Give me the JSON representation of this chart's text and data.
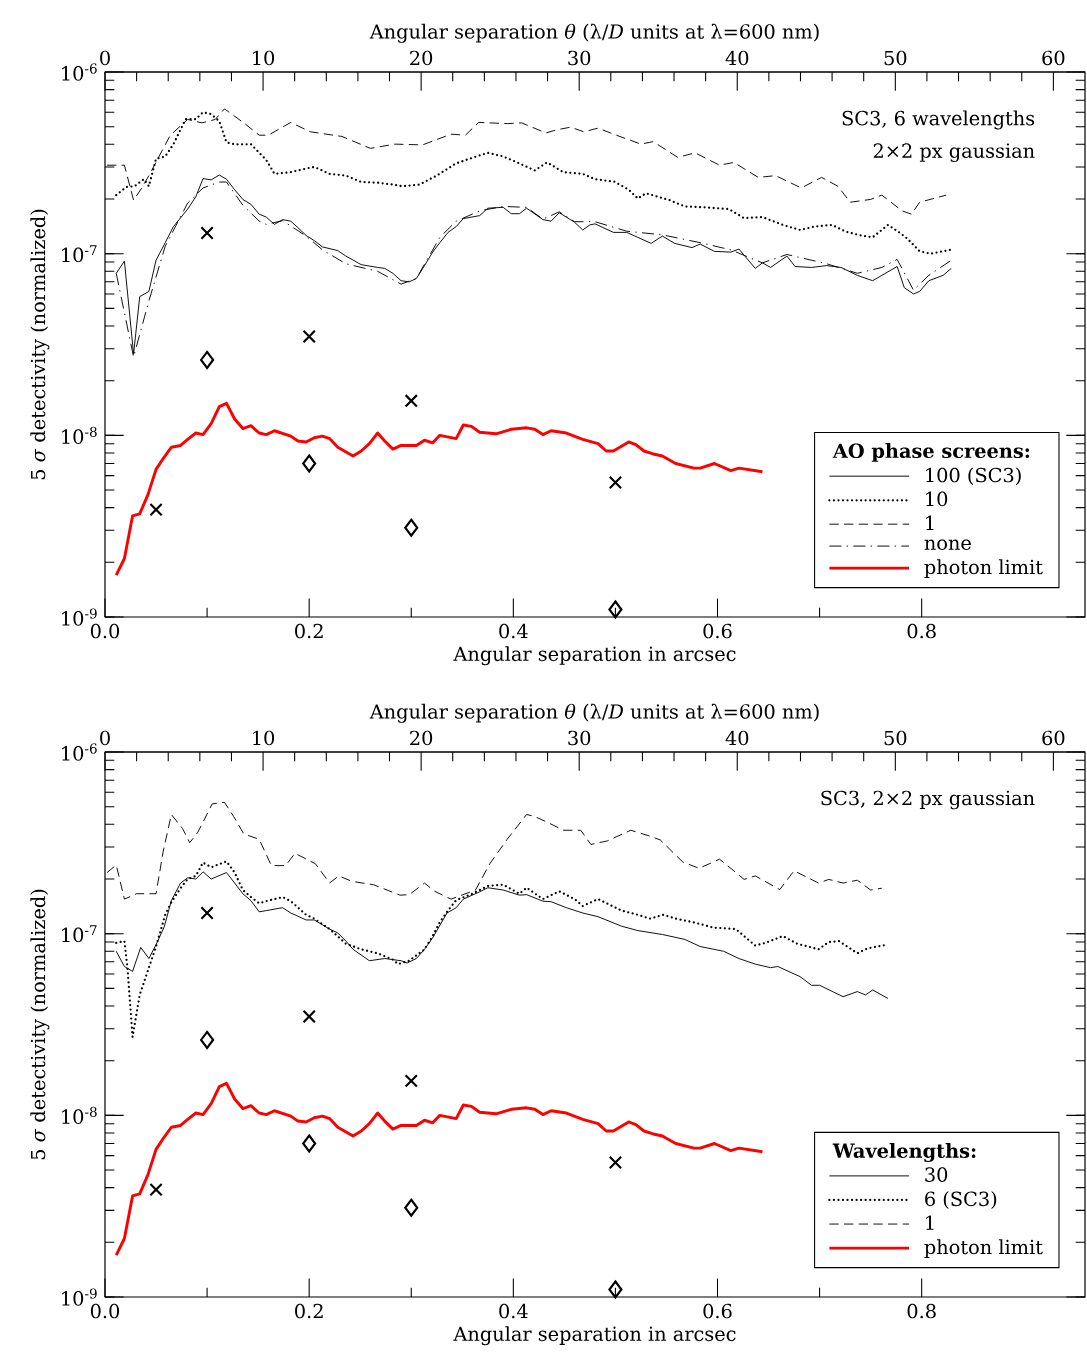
{
  "chart_data": [
    {
      "type": "line",
      "xlabel": "Angular separation in arcsec",
      "ylabel": "5 *σ* detectivity (normalized)",
      "x2label": "Angular separation *θ* (λ/*D* units at λ=600 nm)",
      "xlim": [
        0,
        0.96
      ],
      "xticks": [
        {
          "value": 0,
          "label": "0.0"
        },
        0.2,
        0.4,
        0.6,
        0.8
      ],
      "x2lim": [
        0,
        62
      ],
      "x2ticks": [
        0,
        10,
        20,
        30,
        40,
        50,
        60
      ],
      "ylim": [
        1e-09,
        1e-06
      ],
      "yticks": [
        {
          "value": 1e-09,
          "label": "10$^{-9}$"
        },
        {
          "value": 1e-08,
          "label": "10$^{-8}$"
        },
        {
          "value": 1e-07,
          "label": "10$^{-7}$"
        },
        {
          "value": 1e-06,
          "label": "10$^{-6}$"
        }
      ],
      "log": "y",
      "legend": "bottom right",
      "legend_title": "AO phase screens:",
      "annotations": [
        "SC3, 6 wavelengths",
        "2×2 px gaussian"
      ],
      "series": [
        {
          "name": "100 (SC3)",
          "color": "#000000",
          "line_style": "solid",
          "x": [
            0.011,
            0.019,
            0.028,
            0.034,
            0.043,
            0.05,
            0.059,
            0.067,
            0.081,
            0.089,
            0.096,
            0.104,
            0.112,
            0.119,
            0.127,
            0.135,
            0.143,
            0.151,
            0.158,
            0.166,
            0.174,
            0.182,
            0.189,
            0.197,
            0.205,
            0.213,
            0.228,
            0.236,
            0.251,
            0.267,
            0.274,
            0.282,
            0.29,
            0.298,
            0.305,
            0.313,
            0.321,
            0.328,
            0.336,
            0.344,
            0.351,
            0.367,
            0.375,
            0.39,
            0.398,
            0.406,
            0.413,
            0.429,
            0.437,
            0.445,
            0.46,
            0.468,
            0.475,
            0.48,
            0.498,
            0.511,
            0.535,
            0.546,
            0.558,
            0.575,
            0.583,
            0.597,
            0.613,
            0.621,
            0.637,
            0.644,
            0.652,
            0.668,
            0.676,
            0.692,
            0.707,
            0.721,
            0.737,
            0.752,
            0.761,
            0.776,
            0.783,
            0.792,
            0.798,
            0.807,
            0.821,
            0.829
          ],
          "values": [
            7.8e-08,
            9.1e-08,
            2.8e-08,
            5.8e-08,
            6.2e-08,
            9.2e-08,
            1.15e-07,
            1.41e-07,
            1.76e-07,
            2.06e-07,
            2.59e-07,
            2.55e-07,
            2.71e-07,
            2.57e-07,
            2.25e-07,
            1.99e-07,
            1.87e-07,
            1.65e-07,
            1.59e-07,
            1.45e-07,
            1.54e-07,
            1.51e-07,
            1.39e-07,
            1.26e-07,
            1.18e-07,
            1.09e-07,
            1.04e-07,
            9.7e-08,
            8.7e-08,
            8.4e-08,
            8.3e-08,
            7.8e-08,
            7.1e-08,
            7e-08,
            7.3e-08,
            8.6e-08,
            1.02e-07,
            1.15e-07,
            1.31e-07,
            1.41e-07,
            1.56e-07,
            1.62e-07,
            1.78e-07,
            1.8e-07,
            1.66e-07,
            1.66e-07,
            1.78e-07,
            1.54e-07,
            1.51e-07,
            1.68e-07,
            1.49e-07,
            1.35e-07,
            1.44e-07,
            1.46e-07,
            1.31e-07,
            1.31e-07,
            1.14e-07,
            1.25e-07,
            1.14e-07,
            1.08e-07,
            1.13e-07,
            1.03e-07,
            1.02e-07,
            1.06e-07,
            8.3e-08,
            8.9e-08,
            8.4e-08,
            9.7e-08,
            8.5e-08,
            8.4e-08,
            8.6e-08,
            8.4e-08,
            7.6e-08,
            7.1e-08,
            7.6e-08,
            8.5e-08,
            6.5e-08,
            6e-08,
            6.2e-08,
            7.1e-08,
            7.6e-08,
            8.3e-08
          ]
        },
        {
          "name": "10",
          "color": "#000000",
          "line_style": "dotted",
          "x": [
            0.011,
            0.021,
            0.029,
            0.038,
            0.043,
            0.05,
            0.059,
            0.067,
            0.079,
            0.089,
            0.096,
            0.104,
            0.112,
            0.119,
            0.127,
            0.143,
            0.158,
            0.166,
            0.182,
            0.197,
            0.205,
            0.22,
            0.236,
            0.251,
            0.267,
            0.282,
            0.291,
            0.308,
            0.325,
            0.344,
            0.359,
            0.375,
            0.39,
            0.406,
            0.421,
            0.433,
            0.449,
            0.468,
            0.48,
            0.499,
            0.513,
            0.522,
            0.53,
            0.553,
            0.568,
            0.587,
            0.611,
            0.626,
            0.644,
            0.664,
            0.681,
            0.695,
            0.712,
            0.726,
            0.74,
            0.752,
            0.767,
            0.778,
            0.786,
            0.798,
            0.809,
            0.828
          ],
          "values": [
            2.1e-07,
            2.33e-07,
            2.35e-07,
            2.57e-07,
            2.35e-07,
            3.33e-07,
            3.43e-07,
            4e-07,
            5.5e-07,
            5.5e-07,
            6e-07,
            5.86e-07,
            5.36e-07,
            4.1e-07,
            4e-07,
            4e-07,
            3.28e-07,
            2.75e-07,
            2.81e-07,
            2.94e-07,
            3e-07,
            2.75e-07,
            2.69e-07,
            2.48e-07,
            2.46e-07,
            2.4e-07,
            2.35e-07,
            2.4e-07,
            2.69e-07,
            3.14e-07,
            3.36e-07,
            3.59e-07,
            3.43e-07,
            3.14e-07,
            2.87e-07,
            3.18e-07,
            2.81e-07,
            2.75e-07,
            2.57e-07,
            2.49e-07,
            2.25e-07,
            2.01e-07,
            2.15e-07,
            1.97e-07,
            1.82e-07,
            1.8e-07,
            1.76e-07,
            1.57e-07,
            1.59e-07,
            1.44e-07,
            1.35e-07,
            1.41e-07,
            1.44e-07,
            1.32e-07,
            1.26e-07,
            1.23e-07,
            1.44e-07,
            1.31e-07,
            1.21e-07,
            1.03e-07,
            1e-07,
            1.05e-07
          ]
        },
        {
          "name": "1",
          "color": "#000000",
          "line_style": "dashed",
          "x": [
            0.002,
            0.019,
            0.028,
            0.036,
            0.043,
            0.064,
            0.081,
            0.095,
            0.108,
            0.117,
            0.136,
            0.151,
            0.16,
            0.182,
            0.201,
            0.232,
            0.26,
            0.284,
            0.311,
            0.339,
            0.353,
            0.366,
            0.394,
            0.408,
            0.432,
            0.442,
            0.456,
            0.469,
            0.483,
            0.499,
            0.525,
            0.537,
            0.561,
            0.578,
            0.602,
            0.616,
            0.64,
            0.657,
            0.682,
            0.702,
            0.718,
            0.73,
            0.75,
            0.761,
            0.781,
            0.79,
            0.798,
            0.824
          ],
          "values": [
            3.07e-07,
            3.07e-07,
            1.97e-07,
            2.3e-07,
            2.69e-07,
            4.49e-07,
            5.48e-07,
            5.25e-07,
            5.48e-07,
            6.27e-07,
            5.25e-07,
            4.49e-07,
            4.49e-07,
            5.28e-07,
            4.69e-07,
            4.42e-07,
            3.8e-07,
            4.01e-07,
            3.97e-07,
            4.55e-07,
            4.49e-07,
            5.28e-07,
            5.2e-07,
            5.25e-07,
            4.62e-07,
            4.8e-07,
            4.97e-07,
            4.69e-07,
            4.91e-07,
            4.53e-07,
            4.01e-07,
            4.14e-07,
            3.39e-07,
            3.59e-07,
            3.07e-07,
            3.18e-07,
            2.63e-07,
            2.69e-07,
            2.3e-07,
            2.63e-07,
            2.35e-07,
            1.92e-07,
            1.99e-07,
            2.1e-07,
            1.72e-07,
            1.65e-07,
            1.92e-07,
            2.1e-07
          ]
        },
        {
          "name": "none",
          "color": "#000000",
          "line_style": "dashdot",
          "x": [
            0.011,
            0.028,
            0.043,
            0.059,
            0.081,
            0.096,
            0.112,
            0.119,
            0.135,
            0.151,
            0.158,
            0.174,
            0.197,
            0.213,
            0.236,
            0.267,
            0.29,
            0.305,
            0.328,
            0.344,
            0.367,
            0.39,
            0.413,
            0.429,
            0.445,
            0.46,
            0.48,
            0.511,
            0.546,
            0.583,
            0.613,
            0.644,
            0.668,
            0.707,
            0.737,
            0.761,
            0.776,
            0.792,
            0.807,
            0.829
          ],
          "values": [
            7.8e-08,
            2.7e-08,
            5.5e-08,
            1.1e-07,
            1.9e-07,
            2.3e-07,
            2.48e-07,
            2.48e-07,
            1.85e-07,
            1.51e-07,
            1.45e-07,
            1.52e-07,
            1.25e-07,
            1.05e-07,
            8.8e-08,
            8e-08,
            6.8e-08,
            7.3e-08,
            1.23e-07,
            1.51e-07,
            1.72e-07,
            1.82e-07,
            1.8e-07,
            1.55e-07,
            1.7e-07,
            1.5e-07,
            1.5e-07,
            1.33e-07,
            1.27e-07,
            1.15e-07,
            1.05e-07,
            8.9e-08,
            9.9e-08,
            8.8e-08,
            7.8e-08,
            8.4e-08,
            9.3e-08,
            6.3e-08,
            7.6e-08,
            9.2e-08
          ]
        },
        {
          "name": "photon limit",
          "color": "#ff0000",
          "line_style": "solid",
          "x": [
            0.011,
            0.019,
            0.027,
            0.034,
            0.042,
            0.05,
            0.058,
            0.065,
            0.074,
            0.081,
            0.089,
            0.096,
            0.104,
            0.112,
            0.119,
            0.127,
            0.135,
            0.143,
            0.151,
            0.158,
            0.166,
            0.182,
            0.189,
            0.197,
            0.205,
            0.213,
            0.22,
            0.228,
            0.243,
            0.251,
            0.259,
            0.267,
            0.274,
            0.282,
            0.29,
            0.305,
            0.313,
            0.321,
            0.328,
            0.344,
            0.351,
            0.359,
            0.367,
            0.383,
            0.398,
            0.413,
            0.421,
            0.429,
            0.437,
            0.452,
            0.468,
            0.483,
            0.491,
            0.498,
            0.513,
            0.52,
            0.528,
            0.537,
            0.546,
            0.559,
            0.577,
            0.583,
            0.597,
            0.613,
            0.621,
            0.644
          ],
          "values": [
            1.7e-09,
            2.1e-09,
            3.6e-09,
            3.7e-09,
            4.7e-09,
            6.5e-09,
            7.6e-09,
            8.6e-09,
            8.8e-09,
            9.5e-09,
            1.03e-08,
            1.01e-08,
            1.16e-08,
            1.44e-08,
            1.5e-08,
            1.23e-08,
            1.09e-08,
            1.13e-08,
            1.03e-08,
            1.01e-08,
            1.06e-08,
            9.9e-09,
            9.3e-09,
            9.2e-09,
            9.7e-09,
            9.9e-09,
            9.6e-09,
            8.6e-09,
            7.7e-09,
            8.2e-09,
            9e-09,
            1.03e-08,
            9.3e-09,
            8.4e-09,
            8.8e-09,
            8.8e-09,
            9.4e-09,
            9.1e-09,
            1e-08,
            9.6e-09,
            1.14e-08,
            1.12e-08,
            1.04e-08,
            1.02e-08,
            1.08e-08,
            1.1e-08,
            1.08e-08,
            1.01e-08,
            1.06e-08,
            1.03e-08,
            9.5e-09,
            9e-09,
            8.2e-09,
            8.2e-09,
            9.2e-09,
            8.9e-09,
            8.2e-09,
            7.9e-09,
            7.7e-09,
            7e-09,
            6.6e-09,
            6.6e-09,
            7e-09,
            6.4e-09,
            6.6e-09,
            6.3e-09
          ]
        },
        {
          "type": "scatter",
          "marker": "cross",
          "color": "#000000",
          "x": [
            0.05,
            0.1,
            0.2,
            0.3,
            0.5
          ],
          "values": [
            3.9e-09,
            1.3e-07,
            3.5e-08,
            1.55e-08,
            5.5e-09
          ]
        },
        {
          "type": "scatter",
          "marker": "diamond",
          "color": "#000000",
          "x": [
            0.1,
            0.2,
            0.3,
            0.5
          ],
          "values": [
            2.6e-08,
            7e-09,
            3.1e-09,
            1.1e-09
          ]
        }
      ]
    },
    {
      "type": "line",
      "xlabel": "Angular separation in arcsec",
      "ylabel": "5 *σ* detectivity (normalized)",
      "x2label": "Angular separation *θ* (λ/*D* units at λ=600 nm)",
      "xlim": [
        0,
        0.96
      ],
      "xticks": [
        {
          "value": 0,
          "label": "0.0"
        },
        0.2,
        0.4,
        0.6,
        0.8
      ],
      "x2lim": [
        0,
        62
      ],
      "x2ticks": [
        0,
        10,
        20,
        30,
        40,
        50,
        60
      ],
      "ylim": [
        1e-09,
        1e-06
      ],
      "yticks": [
        {
          "value": 1e-09,
          "label": "10$^{-9}$"
        },
        {
          "value": 1e-08,
          "label": "10$^{-8}$"
        },
        {
          "value": 1e-07,
          "label": "10$^{-7}$"
        },
        {
          "value": 1e-06,
          "label": "10$^{-6}$"
        }
      ],
      "log": "y",
      "legend": "bottom right",
      "legend_title": "Wavelengths:",
      "annotations": [
        "SC3, 2×2 px gaussian"
      ],
      "series": [
        {
          "name": "30",
          "color": "#000000",
          "line_style": "solid",
          "x": [
            0.011,
            0.019,
            0.027,
            0.035,
            0.043,
            0.05,
            0.058,
            0.065,
            0.074,
            0.081,
            0.089,
            0.096,
            0.104,
            0.119,
            0.127,
            0.135,
            0.143,
            0.151,
            0.158,
            0.174,
            0.182,
            0.197,
            0.205,
            0.22,
            0.228,
            0.236,
            0.243,
            0.259,
            0.274,
            0.29,
            0.296,
            0.305,
            0.313,
            0.321,
            0.335,
            0.344,
            0.351,
            0.367,
            0.375,
            0.39,
            0.406,
            0.413,
            0.429,
            0.437,
            0.452,
            0.468,
            0.483,
            0.506,
            0.522,
            0.546,
            0.568,
            0.583,
            0.606,
            0.621,
            0.637,
            0.652,
            0.659,
            0.681,
            0.692,
            0.7,
            0.723,
            0.737,
            0.745,
            0.752,
            0.767
          ],
          "values": [
            8e-08,
            6.6e-08,
            6.2e-08,
            8.4e-08,
            7.3e-08,
            8.7e-08,
            1.09e-07,
            1.52e-07,
            1.9e-07,
            2.03e-07,
            2e-07,
            2.19e-07,
            2e-07,
            2.17e-07,
            1.9e-07,
            1.66e-07,
            1.52e-07,
            1.32e-07,
            1.34e-07,
            1.39e-07,
            1.3e-07,
            1.19e-07,
            1.19e-07,
            1.06e-07,
            1.01e-07,
            9.1e-08,
            8.2e-08,
            7.1e-08,
            7.3e-08,
            7.1e-08,
            6.9e-08,
            7.3e-08,
            8.2e-08,
            9.5e-08,
            1.3e-07,
            1.39e-07,
            1.55e-07,
            1.7e-07,
            1.79e-07,
            1.74e-07,
            1.63e-07,
            1.64e-07,
            1.51e-07,
            1.5e-07,
            1.39e-07,
            1.3e-07,
            1.24e-07,
            1.1e-07,
            1.04e-07,
            9.9e-08,
            9.3e-08,
            8.5e-08,
            8e-08,
            7.3e-08,
            6.8e-08,
            6.5e-08,
            6.6e-08,
            5.8e-08,
            5.2e-08,
            5.2e-08,
            4.5e-08,
            4.8e-08,
            4.6e-08,
            4.9e-08,
            4.4e-08
          ]
        },
        {
          "name": "6 (SC3)",
          "color": "#000000",
          "line_style": "dotted",
          "x": [
            0.011,
            0.019,
            0.022,
            0.027,
            0.034,
            0.043,
            0.05,
            0.059,
            0.065,
            0.074,
            0.081,
            0.089,
            0.096,
            0.104,
            0.119,
            0.127,
            0.135,
            0.143,
            0.151,
            0.158,
            0.174,
            0.182,
            0.197,
            0.205,
            0.22,
            0.236,
            0.251,
            0.267,
            0.282,
            0.287,
            0.298,
            0.313,
            0.321,
            0.328,
            0.336,
            0.344,
            0.359,
            0.375,
            0.39,
            0.406,
            0.413,
            0.429,
            0.445,
            0.46,
            0.468,
            0.483,
            0.506,
            0.522,
            0.534,
            0.547,
            0.559,
            0.578,
            0.596,
            0.618,
            0.626,
            0.637,
            0.647,
            0.664,
            0.678,
            0.699,
            0.709,
            0.719,
            0.737,
            0.747,
            0.766
          ],
          "values": [
            8.9e-08,
            9.1e-08,
            6.5e-08,
            2.7e-08,
            4.6e-08,
            6.5e-08,
            8.5e-08,
            1.27e-07,
            1.49e-07,
            1.78e-07,
            2e-07,
            2.08e-07,
            2.46e-07,
            2.32e-07,
            2.5e-07,
            2.17e-07,
            1.74e-07,
            1.59e-07,
            1.47e-07,
            1.51e-07,
            1.59e-07,
            1.51e-07,
            1.27e-07,
            1.21e-07,
            1.06e-07,
            8.8e-08,
            8.2e-08,
            7.8e-08,
            7.2e-08,
            6.8e-08,
            7.1e-08,
            8.2e-08,
            9.7e-08,
            1.16e-07,
            1.34e-07,
            1.53e-07,
            1.65e-07,
            1.83e-07,
            1.86e-07,
            1.66e-07,
            1.79e-07,
            1.55e-07,
            1.71e-07,
            1.55e-07,
            1.42e-07,
            1.55e-07,
            1.34e-07,
            1.27e-07,
            1.21e-07,
            1.27e-07,
            1.21e-07,
            1.15e-07,
            1.08e-07,
            1.06e-07,
            9.7e-08,
            8.6e-08,
            8.9e-08,
            9.7e-08,
            8.8e-08,
            8.2e-08,
            9e-08,
            9.1e-08,
            7.8e-08,
            8.3e-08,
            8.7e-08
          ]
        },
        {
          "name": "1",
          "color": "#000000",
          "line_style": "dashed",
          "x": [
            0.002,
            0.011,
            0.019,
            0.031,
            0.05,
            0.057,
            0.065,
            0.076,
            0.083,
            0.091,
            0.105,
            0.117,
            0.126,
            0.136,
            0.151,
            0.163,
            0.177,
            0.186,
            0.206,
            0.22,
            0.229,
            0.242,
            0.263,
            0.289,
            0.298,
            0.313,
            0.323,
            0.339,
            0.363,
            0.377,
            0.394,
            0.413,
            0.421,
            0.439,
            0.449,
            0.466,
            0.476,
            0.492,
            0.515,
            0.532,
            0.544,
            0.566,
            0.582,
            0.602,
            0.616,
            0.626,
            0.637,
            0.661,
            0.675,
            0.699,
            0.709,
            0.723,
            0.737,
            0.75,
            0.761
          ],
          "values": [
            2.17e-07,
            2.39e-07,
            1.55e-07,
            1.66e-07,
            1.66e-07,
            2.84e-07,
            4.53e-07,
            3.79e-07,
            3.17e-07,
            3.62e-07,
            5.18e-07,
            5.29e-07,
            4.42e-07,
            3.54e-07,
            3.31e-07,
            2.37e-07,
            2.37e-07,
            2.77e-07,
            2.43e-07,
            1.9e-07,
            2.08e-07,
            1.94e-07,
            1.86e-07,
            1.63e-07,
            1.64e-07,
            1.9e-07,
            1.71e-07,
            1.55e-07,
            1.74e-07,
            2.43e-07,
            3.31e-07,
            4.53e-07,
            4.42e-07,
            3.96e-07,
            3.71e-07,
            3.71e-07,
            3.1e-07,
            3.24e-07,
            3.71e-07,
            3.47e-07,
            3.28e-07,
            2.48e-07,
            2.29e-07,
            2.57e-07,
            2.22e-07,
            1.99e-07,
            2.08e-07,
            1.75e-07,
            2.22e-07,
            1.9e-07,
            1.99e-07,
            1.9e-07,
            1.97e-07,
            1.74e-07,
            1.78e-07
          ]
        },
        {
          "name": "photon limit",
          "color": "#ff0000",
          "line_style": "solid",
          "x": [
            0.011,
            0.019,
            0.027,
            0.034,
            0.042,
            0.05,
            0.058,
            0.065,
            0.074,
            0.081,
            0.089,
            0.096,
            0.104,
            0.112,
            0.119,
            0.127,
            0.135,
            0.143,
            0.151,
            0.158,
            0.166,
            0.182,
            0.189,
            0.197,
            0.205,
            0.213,
            0.22,
            0.228,
            0.243,
            0.251,
            0.259,
            0.267,
            0.274,
            0.282,
            0.29,
            0.305,
            0.313,
            0.321,
            0.328,
            0.344,
            0.351,
            0.359,
            0.367,
            0.383,
            0.398,
            0.413,
            0.421,
            0.429,
            0.437,
            0.452,
            0.468,
            0.483,
            0.491,
            0.498,
            0.513,
            0.52,
            0.528,
            0.537,
            0.546,
            0.559,
            0.577,
            0.583,
            0.597,
            0.613,
            0.621,
            0.644
          ],
          "values": [
            1.7e-09,
            2.1e-09,
            3.6e-09,
            3.7e-09,
            4.7e-09,
            6.5e-09,
            7.6e-09,
            8.6e-09,
            8.8e-09,
            9.5e-09,
            1.03e-08,
            1.01e-08,
            1.16e-08,
            1.44e-08,
            1.5e-08,
            1.23e-08,
            1.09e-08,
            1.13e-08,
            1.03e-08,
            1.01e-08,
            1.06e-08,
            9.9e-09,
            9.3e-09,
            9.2e-09,
            9.7e-09,
            9.9e-09,
            9.6e-09,
            8.6e-09,
            7.7e-09,
            8.2e-09,
            9e-09,
            1.03e-08,
            9.3e-09,
            8.4e-09,
            8.8e-09,
            8.8e-09,
            9.4e-09,
            9.1e-09,
            1e-08,
            9.6e-09,
            1.14e-08,
            1.12e-08,
            1.04e-08,
            1.02e-08,
            1.08e-08,
            1.1e-08,
            1.08e-08,
            1.01e-08,
            1.06e-08,
            1.03e-08,
            9.5e-09,
            9e-09,
            8.2e-09,
            8.2e-09,
            9.2e-09,
            8.9e-09,
            8.2e-09,
            7.9e-09,
            7.7e-09,
            7e-09,
            6.6e-09,
            6.6e-09,
            7e-09,
            6.4e-09,
            6.6e-09,
            6.3e-09
          ]
        },
        {
          "type": "scatter",
          "marker": "cross",
          "color": "#000000",
          "x": [
            0.05,
            0.1,
            0.2,
            0.3,
            0.5
          ],
          "values": [
            3.9e-09,
            1.3e-07,
            3.5e-08,
            1.55e-08,
            5.5e-09
          ]
        },
        {
          "type": "scatter",
          "marker": "diamond",
          "color": "#000000",
          "x": [
            0.1,
            0.2,
            0.3,
            0.5
          ],
          "values": [
            2.6e-08,
            7e-09,
            3.1e-09,
            1.1e-09
          ]
        }
      ]
    }
  ]
}
